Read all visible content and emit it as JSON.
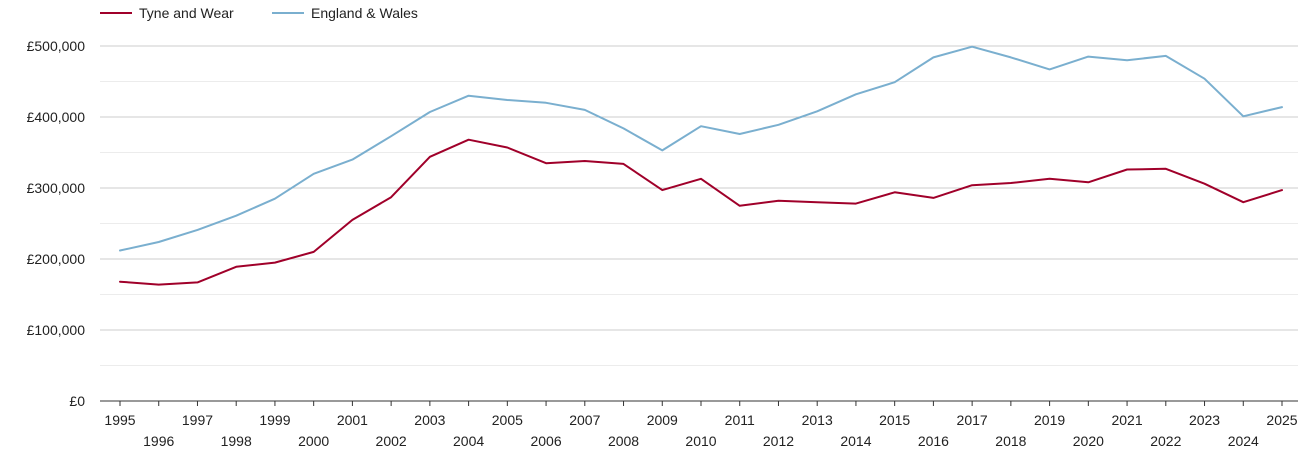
{
  "chart_data": {
    "type": "line",
    "title": "",
    "xlabel": "",
    "ylabel": "",
    "x": [
      1995,
      1996,
      1997,
      1998,
      1999,
      2000,
      2001,
      2002,
      2003,
      2004,
      2005,
      2006,
      2007,
      2008,
      2009,
      2010,
      2011,
      2012,
      2013,
      2014,
      2015,
      2016,
      2017,
      2018,
      2019,
      2020,
      2021,
      2022,
      2023,
      2024,
      2025
    ],
    "x_tick_labels": [
      "1995",
      "1996",
      "1997",
      "1998",
      "1999",
      "2000",
      "2001",
      "2002",
      "2003",
      "2004",
      "2005",
      "2006",
      "2007",
      "2008",
      "2009",
      "2010",
      "2011",
      "2012",
      "2013",
      "2014",
      "2015",
      "2016",
      "2017",
      "2018",
      "2019",
      "2020",
      "2021",
      "2022",
      "2023",
      "2024",
      "2025"
    ],
    "y_tick_labels": [
      "£0",
      "£100,000",
      "£200,000",
      "£300,000",
      "£400,000",
      "£500,000"
    ],
    "y_ticks": [
      0,
      100000,
      200000,
      300000,
      400000,
      500000
    ],
    "ylim": [
      0,
      500000
    ],
    "grid": true,
    "legend_position": "top-left",
    "series": [
      {
        "name": "Tyne and Wear",
        "color": "#a0002a",
        "values": [
          168000,
          164000,
          167000,
          189000,
          195000,
          210000,
          255000,
          287000,
          344000,
          368000,
          357000,
          335000,
          338000,
          334000,
          297000,
          313000,
          275000,
          282000,
          280000,
          278000,
          294000,
          286000,
          304000,
          307000,
          313000,
          308000,
          326000,
          327000,
          306000,
          280000,
          297000
        ]
      },
      {
        "name": "England & Wales",
        "color": "#7aafcf",
        "values": [
          212000,
          224000,
          241000,
          261000,
          285000,
          320000,
          340000,
          373000,
          407000,
          430000,
          424000,
          420000,
          410000,
          384000,
          353000,
          387000,
          376000,
          389000,
          408000,
          432000,
          449000,
          484000,
          499000,
          484000,
          467000,
          485000,
          480000,
          486000,
          454000,
          401000,
          414000
        ]
      }
    ]
  }
}
